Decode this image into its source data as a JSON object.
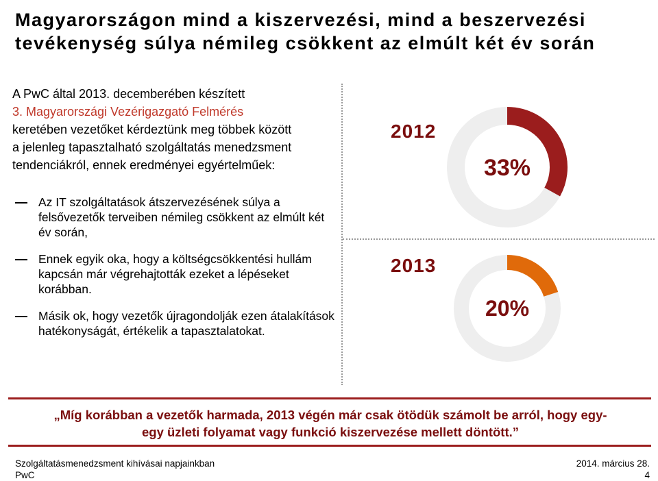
{
  "title": {
    "line1": "Magyarországon mind a kiszervezési, mind a beszervezési",
    "line2": "tevékenység súlya némileg csökkent az elmúlt két év során"
  },
  "intro": {
    "line1": "A PwC által 2013. decemberében készített",
    "line2": "3. Magyarországi Vezérigazgató Felmérés",
    "line3": "keretében vezetőket kérdeztünk meg többek között",
    "line4": "a jelenleg tapasztalható szolgáltatás menedzsment",
    "line5": "tendenciákról, ennek eredményei egyértelműek:"
  },
  "bullets": [
    "Az IT szolgáltatások átszervezésének súlya a felsővezetők terveiben némileg csökkent az elmúlt két év során,",
    "Ennek egyik oka, hogy a költségcsökkentési hullám kapcsán már végrehajtották ezeket a lépéseket korábban.",
    "Másik ok, hogy vezetők újragondolják ezen átalakítások hatékonyságát, értékelik a tapasztalatokat."
  ],
  "chart_data": [
    {
      "type": "pie",
      "title": "2012",
      "values": [
        33,
        67
      ],
      "label": "33%",
      "colors": [
        "#9b1d1d",
        "#eeeeee"
      ]
    },
    {
      "type": "pie",
      "title": "2013",
      "values": [
        20,
        80
      ],
      "label": "20%",
      "colors": [
        "#e06a0a",
        "#eeeeee"
      ]
    }
  ],
  "banner": {
    "line1": "„Míg korábban a vezetők harmada, 2013 végén már csak ötödük számolt be arról, hogy egy-",
    "line2": "egy üzleti folyamat vagy funkció kiszervezése mellett döntött.”"
  },
  "footer": {
    "left_line1": "Szolgáltatásmenedzsment kihívásai napjainkban",
    "left_line2": "PwC",
    "date": "2014. március 28.",
    "page": "4"
  },
  "colors": {
    "accent_dark_red": "#9b1d1d",
    "accent_orange": "#e06a0a",
    "year_color": "#7a0e0e",
    "track": "#eeeeee"
  }
}
